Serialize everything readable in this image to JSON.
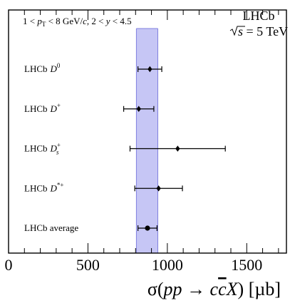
{
  "chart_data": {
    "type": "scatter",
    "subtype": "forest-plot-horizontal-error-bars",
    "title": "",
    "selection": {
      "pt_lhs": "1 <",
      "pt_sym": "p",
      "pt_sub": "T",
      "pt_rhs": "< 8 GeV/",
      "pt_c": "c",
      "sep": ",",
      "y_lhs": "2 <",
      "y_sym": "y",
      "y_rhs": "< 4.5"
    },
    "experiment": {
      "name": "LHCb",
      "energy_sym": "s",
      "energy_rhs": "= 5 TeV"
    },
    "x_axis": {
      "label_sigma": "σ",
      "label_open": "(",
      "label_pp": "pp",
      "label_arrow": "→",
      "label_c": "c",
      "label_cbar": "c",
      "label_X": "X",
      "label_close": ")",
      "label_unit": "[µb]",
      "lim": [
        0,
        1750
      ],
      "ticks": [
        0,
        500,
        1000,
        1500
      ],
      "tick_labels": [
        "0",
        "500",
        "1000",
        "1500"
      ],
      "minor_tick_step": 100
    },
    "points": [
      {
        "label_prefix": "LHCb",
        "label_main": "D",
        "label_sup": "0",
        "label_sub": "",
        "value": 890,
        "err_low": 75,
        "err_high": 75,
        "marker": "diamond"
      },
      {
        "label_prefix": "LHCb",
        "label_main": "D",
        "label_sup": "+",
        "label_sub": "",
        "value": 820,
        "err_low": 95,
        "err_high": 95,
        "marker": "diamond"
      },
      {
        "label_prefix": "LHCb",
        "label_main": "D",
        "label_sup": "+",
        "label_sub": "s",
        "value": 1065,
        "err_low": 300,
        "err_high": 300,
        "marker": "diamond"
      },
      {
        "label_prefix": "LHCb",
        "label_main": "D",
        "label_sup": "*+",
        "label_sub": "",
        "value": 945,
        "err_low": 150,
        "err_high": 150,
        "marker": "diamond"
      },
      {
        "label_prefix": "LHCb average",
        "label_main": "",
        "label_sup": "",
        "label_sub": "",
        "value": 875,
        "err_low": 60,
        "err_high": 60,
        "marker": "circle"
      }
    ],
    "average_band": {
      "low": 805,
      "high": 940,
      "color": "#c6c6f5",
      "edge_color": "#8080e0"
    },
    "grid": false,
    "legend": "none"
  }
}
